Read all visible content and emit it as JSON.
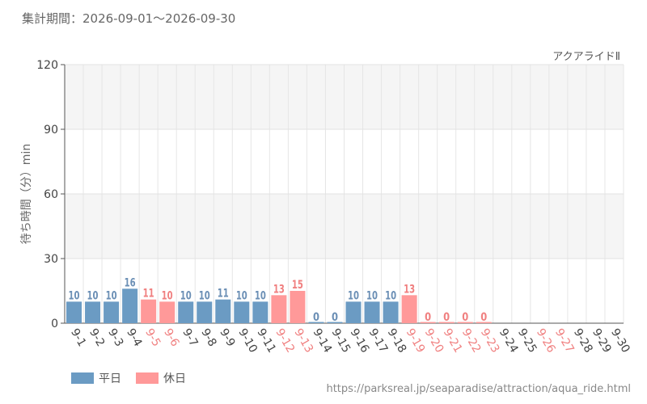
{
  "header": {
    "period_text": "集計期間：2026-09-01～2026-09-30"
  },
  "footer": {
    "source_url": "https://parksreal.jp/seaparadise/attraction/aqua_ride.html"
  },
  "colors": {
    "weekday": "#6b9bc3",
    "holiday": "#ff9999",
    "weekday_text": "#6b8fb5",
    "holiday_text": "#f08080"
  },
  "chart_data": {
    "type": "bar",
    "title": "アクアライドⅡ",
    "ylabel": "待ち時間（分）min",
    "xlabel": "",
    "ylim": [
      0,
      120
    ],
    "yticks": [
      0,
      30,
      60,
      90,
      120
    ],
    "grid": true,
    "legend_position": "bottom-left",
    "categories": [
      "9-1",
      "9-2",
      "9-3",
      "9-4",
      "9-5",
      "9-6",
      "9-7",
      "9-8",
      "9-9",
      "9-10",
      "9-11",
      "9-12",
      "9-13",
      "9-14",
      "9-15",
      "9-16",
      "9-17",
      "9-18",
      "9-19",
      "9-20",
      "9-21",
      "9-22",
      "9-23",
      "9-24",
      "9-25",
      "9-26",
      "9-27",
      "9-28",
      "9-29",
      "9-30"
    ],
    "values": [
      10,
      10,
      10,
      16,
      11,
      10,
      10,
      10,
      11,
      10,
      10,
      13,
      15,
      0,
      0,
      10,
      10,
      10,
      13,
      0,
      0,
      0,
      0,
      null,
      null,
      null,
      null,
      null,
      null,
      null
    ],
    "day_type": [
      "weekday",
      "weekday",
      "weekday",
      "weekday",
      "holiday",
      "holiday",
      "weekday",
      "weekday",
      "weekday",
      "weekday",
      "weekday",
      "holiday",
      "holiday",
      "weekday",
      "weekday",
      "weekday",
      "weekday",
      "weekday",
      "holiday",
      "holiday",
      "holiday",
      "holiday",
      "holiday",
      "weekday",
      "weekday",
      "holiday",
      "holiday",
      "weekday",
      "weekday",
      "weekday"
    ],
    "series": [
      {
        "name": "平日",
        "key": "weekday"
      },
      {
        "name": "休日",
        "key": "holiday"
      }
    ]
  }
}
